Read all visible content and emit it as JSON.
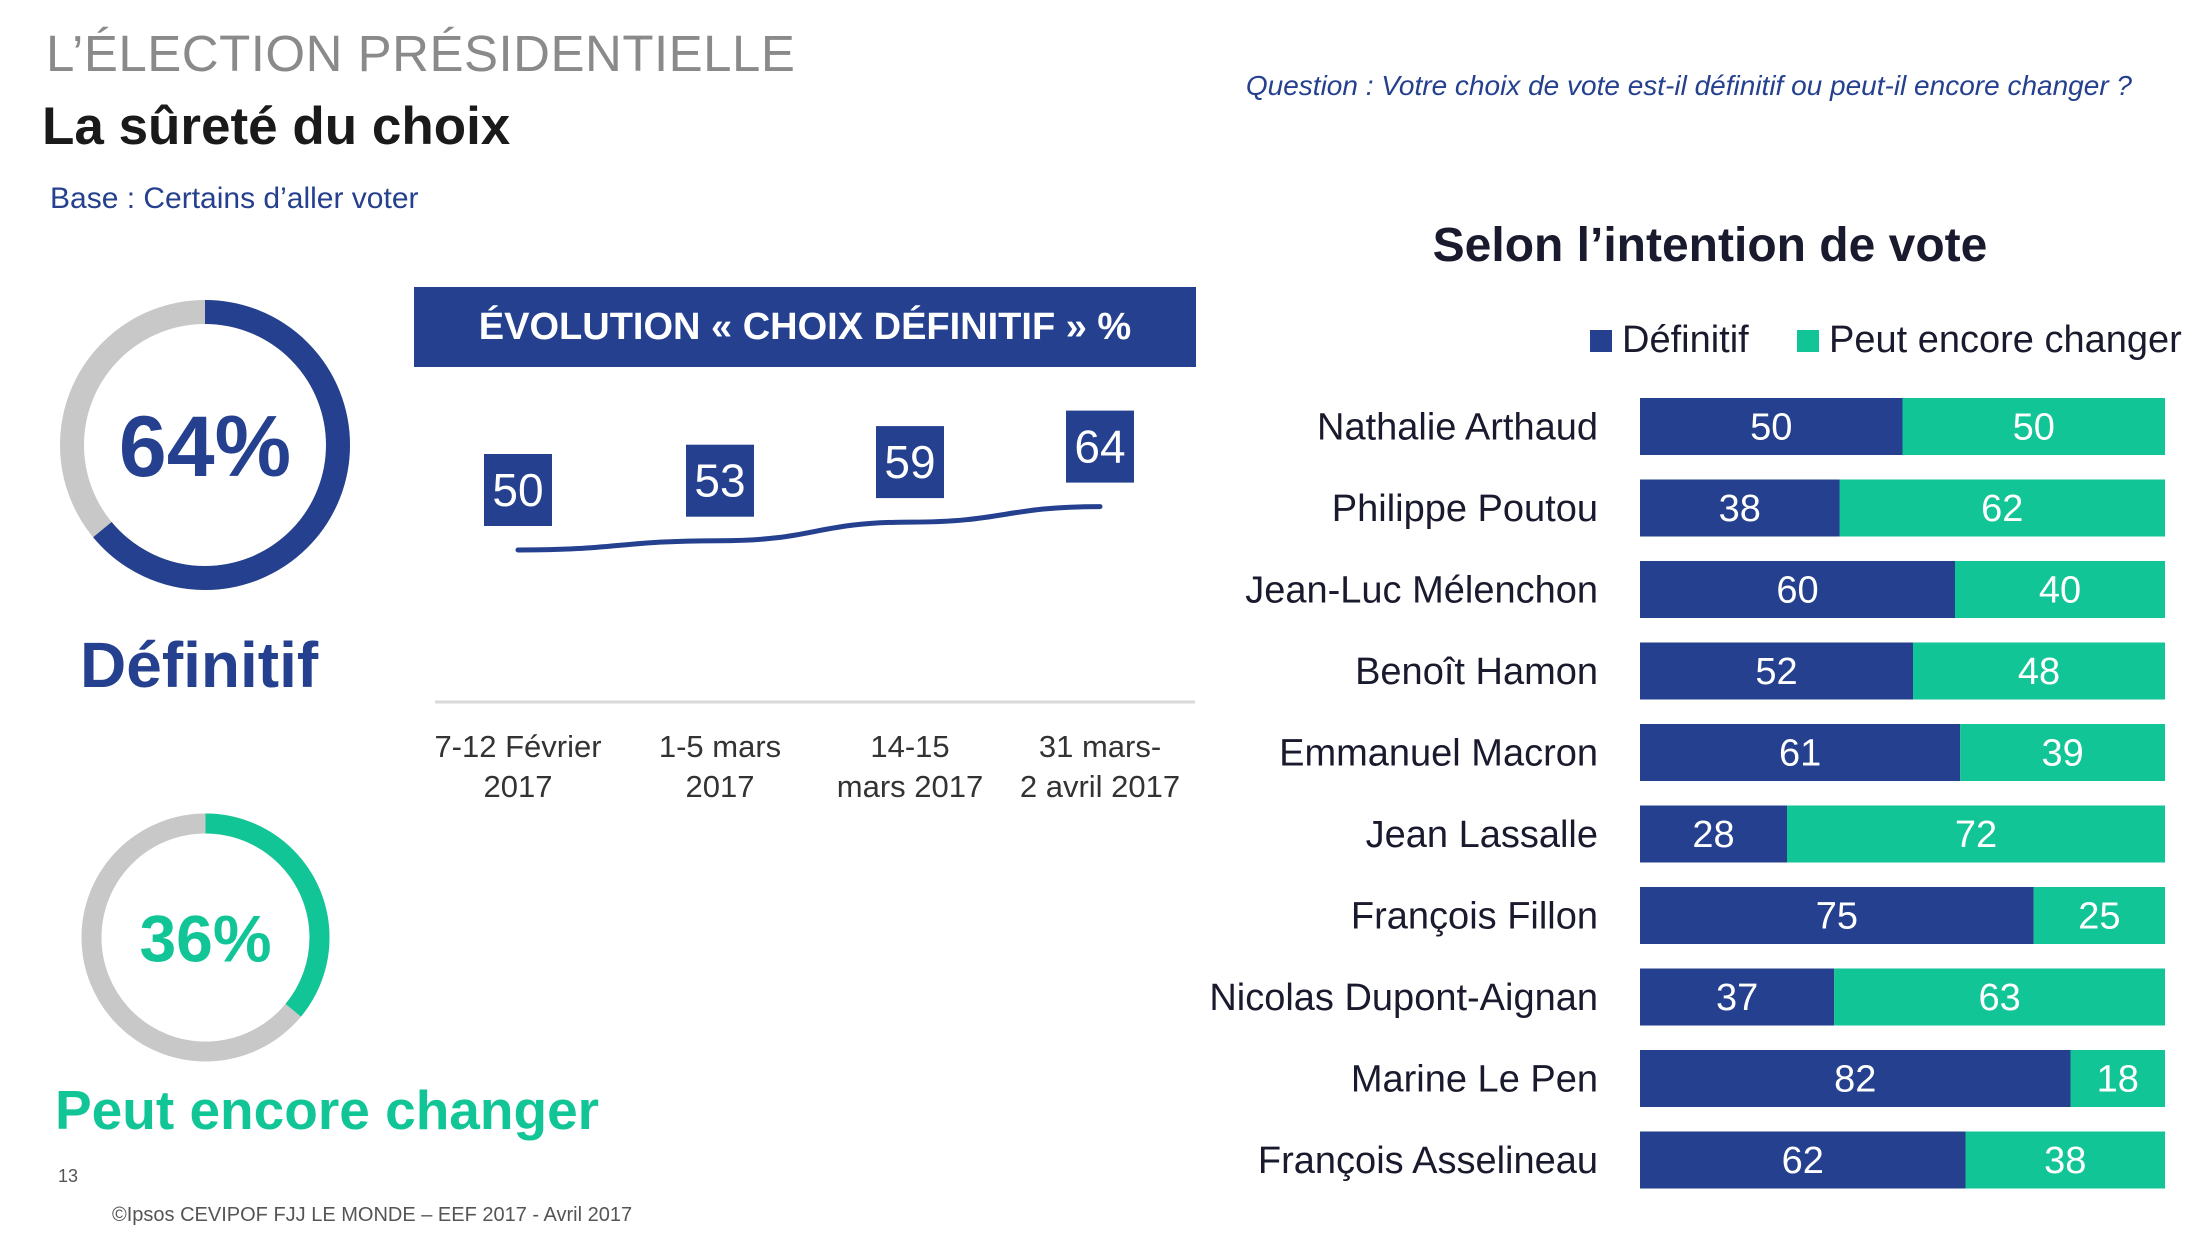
{
  "header": {
    "section": "L’ÉLECTION PRÉSIDENTIELLE",
    "title": "La sûreté du choix",
    "base": "Base : Certains d’aller voter",
    "question": "Question : Votre choix de vote est-il définitif ou peut-il encore changer ?"
  },
  "donuts": [
    {
      "percent": 64,
      "text": "64%",
      "label": "Définitif",
      "color": "#24408e",
      "track": "#c8c8c8"
    },
    {
      "percent": 36,
      "text": "36%",
      "label": "Peut encore changer",
      "color": "#12c597",
      "track": "#c8c8c8"
    }
  ],
  "footer": {
    "page": "13",
    "source": "©Ipsos CEVIPOF FJJ LE MONDE – EEF 2017 - Avril 2017"
  },
  "chart_data": [
    {
      "type": "line",
      "title": "ÉVOLUTION « CHOIX DÉFINITIF » %",
      "categories": [
        [
          "7-12 Février",
          "2017"
        ],
        [
          "1-5 mars",
          "2017"
        ],
        [
          "14-15",
          "mars 2017"
        ],
        [
          "31 mars-",
          "2 avril 2017"
        ]
      ],
      "values": [
        50,
        53,
        59,
        64
      ],
      "line_color": "#24408e"
    },
    {
      "type": "bar",
      "stacked": true,
      "orientation": "horizontal",
      "title": "Selon l’intention de vote",
      "legend_position": "top-right",
      "categories": [
        "Nathalie Arthaud",
        "Philippe Poutou",
        "Jean-Luc Mélenchon",
        "Benoît Hamon",
        "Emmanuel Macron",
        "Jean Lassalle",
        "François Fillon",
        "Nicolas Dupont-Aignan",
        "Marine Le Pen",
        "François Asselineau"
      ],
      "series": [
        {
          "name": "Définitif",
          "color": "#24408e",
          "values": [
            50,
            38,
            60,
            52,
            61,
            28,
            75,
            37,
            82,
            62
          ]
        },
        {
          "name": "Peut encore changer",
          "color": "#12c597",
          "values": [
            50,
            62,
            40,
            48,
            39,
            72,
            25,
            63,
            18,
            38
          ]
        }
      ]
    }
  ]
}
